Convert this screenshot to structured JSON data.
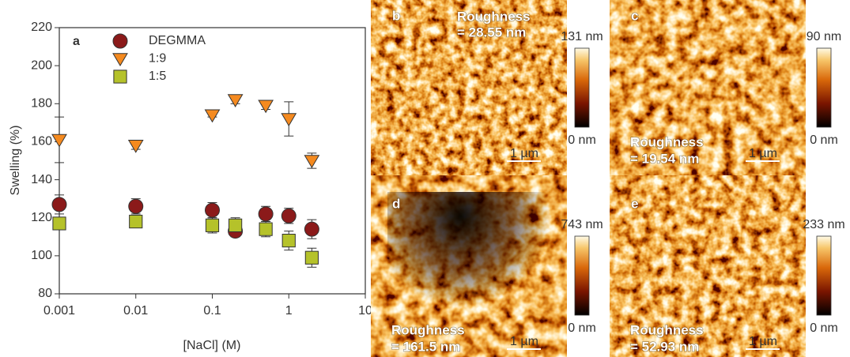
{
  "chart_data": {
    "type": "scatter",
    "label": "a",
    "xlabel": "[NaCl] (M)",
    "ylabel": "Swelling (%)",
    "x": [
      0.001,
      0.01,
      0.1,
      0.2,
      0.5,
      1,
      2
    ],
    "xscale": "log",
    "xlim": [
      0.001,
      10
    ],
    "xticks": [
      0.001,
      0.01,
      0.1,
      1,
      10
    ],
    "ylim": [
      80,
      220
    ],
    "yticks": [
      80,
      100,
      120,
      140,
      160,
      180,
      200,
      220
    ],
    "legend": "top-left",
    "series": [
      {
        "name": "DEGMMA",
        "color": "#8b1a1a",
        "marker": "circle",
        "values": [
          127,
          126,
          124,
          113,
          122,
          121,
          114
        ],
        "errors": [
          5,
          4,
          4,
          3,
          4,
          4,
          5
        ]
      },
      {
        "name": "1:9",
        "color": "#f58a1f",
        "marker": "triangle-down",
        "values": [
          161,
          158,
          174,
          182,
          179,
          172,
          150
        ],
        "errors": [
          12,
          2,
          1,
          2,
          2,
          9,
          4
        ]
      },
      {
        "name": "1:5",
        "color": "#b5c22a",
        "marker": "square",
        "values": [
          117,
          118,
          116,
          116,
          114,
          108,
          99
        ],
        "errors": [
          3,
          2,
          4,
          4,
          4,
          5,
          5
        ]
      }
    ]
  },
  "panels": [
    {
      "letter": "b",
      "roughness_label": "Roughness",
      "roughness_value": "= 28.55 nm",
      "scale_max": "131 nm",
      "scale_min": "0 nm",
      "scale_bar": "1 µm"
    },
    {
      "letter": "c",
      "roughness_label": "Roughness",
      "roughness_value": "= 19.54 nm",
      "scale_max": "90 nm",
      "scale_min": "0 nm",
      "scale_bar": "1 µm"
    },
    {
      "letter": "d",
      "roughness_label": "Roughness",
      "roughness_value": "= 161.5 nm",
      "scale_max": "743 nm",
      "scale_min": "0 nm",
      "scale_bar": "1 µm"
    },
    {
      "letter": "e",
      "roughness_label": "Roughness",
      "roughness_value": "= 52.93 nm",
      "scale_max": "233 nm",
      "scale_min": "0 nm",
      "scale_bar": "1 µm"
    }
  ]
}
